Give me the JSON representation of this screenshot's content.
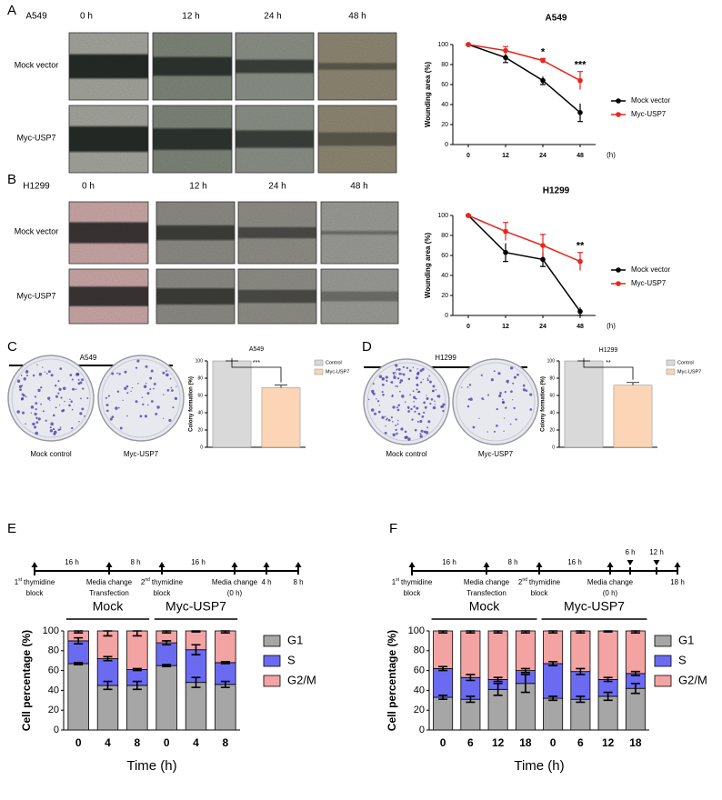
{
  "panels": [
    {
      "label": "A",
      "cell_line": "A549",
      "time_headers": [
        "0 h",
        "12 h",
        "24 h",
        "48 h"
      ],
      "row_labels": [
        "Mock vector",
        "Myc-USP7"
      ]
    },
    {
      "label": "B",
      "cell_line": "H1299",
      "time_headers": [
        "0 h",
        "12 h",
        "24 h",
        "48 h"
      ],
      "row_labels": [
        "Mock vector",
        "Myc-USP7"
      ]
    },
    {
      "label": "C",
      "cell_line": "A549",
      "plate_labels": [
        "Mock control",
        "Myc-USP7"
      ]
    },
    {
      "label": "D",
      "cell_line": "H1299",
      "plate_labels": [
        "Mock control",
        "Myc-USP7"
      ]
    },
    {
      "label": "E",
      "timeline": {
        "intervals": [
          "16 h",
          "8 h",
          "16 h"
        ],
        "events": [
          {
            "ordinal": "1",
            "suffix": "st",
            "text": "thymidine",
            "line2": "block"
          },
          {
            "text": "Media change",
            "line2": "Transfection"
          },
          {
            "ordinal": "2",
            "suffix": "nd",
            "text": "thymidine",
            "line2": "block"
          },
          {
            "text": "Media change",
            "line2": "(0 h)"
          },
          {
            "text": "4 h"
          },
          {
            "text": "8 h"
          }
        ]
      }
    },
    {
      "label": "F",
      "timeline": {
        "intervals": [
          "16 h",
          "8 h",
          "16 h"
        ],
        "events": [
          {
            "ordinal": "1",
            "suffix": "st",
            "text": "thymidine",
            "line2": "block"
          },
          {
            "text": "Media change",
            "line2": "Transfection"
          },
          {
            "ordinal": "2",
            "suffix": "nd",
            "text": "thymidine",
            "line2": "block"
          },
          {
            "text": "Media change",
            "line2": "(0 h)"
          },
          {
            "text": "6 h"
          },
          {
            "text": "12 h"
          },
          {
            "text": "18 h"
          }
        ]
      }
    }
  ],
  "chart_data": [
    {
      "type": "line",
      "title": "A549",
      "x_label": "(h)",
      "y_label": "Wounding area (%)",
      "categories": [
        "0",
        "12",
        "24",
        "48"
      ],
      "ylim": [
        0,
        100
      ],
      "yticks": [
        0,
        20,
        40,
        60,
        80,
        100
      ],
      "series": [
        {
          "name": "Mock vector",
          "color": "#000000",
          "values": [
            100,
            87,
            64,
            32
          ],
          "errors": [
            0,
            5,
            4,
            9
          ]
        },
        {
          "name": "Myc-USP7",
          "color": "#e8261e",
          "values": [
            100,
            94,
            84,
            64
          ],
          "errors": [
            0,
            4,
            2,
            9
          ]
        }
      ],
      "significance": [
        null,
        null,
        "*",
        "***"
      ]
    },
    {
      "type": "line",
      "title": "H1299",
      "x_label": "(h)",
      "y_label": "Wounding area (%)",
      "categories": [
        "0",
        "12",
        "24",
        "48"
      ],
      "ylim": [
        0,
        100
      ],
      "yticks": [
        0,
        20,
        40,
        60,
        80,
        100
      ],
      "series": [
        {
          "name": "Mock vector",
          "color": "#000000",
          "values": [
            100,
            63,
            56,
            4
          ],
          "errors": [
            0,
            9,
            7,
            4
          ]
        },
        {
          "name": "Myc-USP7",
          "color": "#e8261e",
          "values": [
            100,
            84,
            70,
            54
          ],
          "errors": [
            0,
            9,
            11,
            9
          ]
        }
      ],
      "significance": [
        null,
        null,
        null,
        "**"
      ]
    },
    {
      "type": "bar",
      "title": "A549",
      "y_label": "Colony formation (%)",
      "categories": [
        "Control",
        "Myc-USP7"
      ],
      "values": [
        100,
        69
      ],
      "errors": [
        0,
        3
      ],
      "colors": [
        "#d9d9d9",
        "#fbd5b5"
      ],
      "ylim": [
        0,
        100
      ],
      "yticks": [
        0,
        20,
        40,
        60,
        80,
        100
      ],
      "significance": "***"
    },
    {
      "type": "bar",
      "title": "H1299",
      "y_label": "Colony formation (%)",
      "categories": [
        "Control",
        "Myc-USP7"
      ],
      "values": [
        100,
        72
      ],
      "errors": [
        0,
        3
      ],
      "colors": [
        "#d9d9d9",
        "#fbd5b5"
      ],
      "ylim": [
        0,
        100
      ],
      "yticks": [
        0,
        20,
        40,
        60,
        80,
        100
      ],
      "significance": "**"
    },
    {
      "type": "stacked_bar",
      "x_label": "Time (h)",
      "y_label": "Cell percentage (%)",
      "groups": [
        "Mock",
        "Myc-USP7"
      ],
      "categories": [
        "0",
        "4",
        "8",
        "0",
        "4",
        "8"
      ],
      "ylim": [
        0,
        100
      ],
      "yticks": [
        0,
        20,
        40,
        60,
        80,
        100
      ],
      "series": [
        {
          "name": "G1",
          "color": "#a6a6a6",
          "values": [
            67,
            45,
            45,
            65,
            48,
            46
          ],
          "errors": [
            1,
            4,
            4,
            1,
            5,
            3
          ]
        },
        {
          "name": "S",
          "color": "#6b6bf2",
          "values": [
            23,
            27,
            16,
            23,
            33,
            22
          ],
          "errors": [
            3,
            2,
            1,
            2,
            5,
            1
          ]
        },
        {
          "name": "G2/M",
          "color": "#f4a3a3",
          "values": [
            10,
            28,
            39,
            12,
            19,
            32
          ],
          "errors": [
            2,
            5,
            5,
            2,
            1,
            2
          ]
        }
      ]
    },
    {
      "type": "stacked_bar",
      "x_label": "Time (h)",
      "y_label": "Cell percentage (%)",
      "groups": [
        "Mock",
        "Myc-USP7"
      ],
      "categories": [
        "0",
        "6",
        "12",
        "18",
        "0",
        "6",
        "12",
        "18"
      ],
      "ylim": [
        0,
        100
      ],
      "yticks": [
        0,
        20,
        40,
        60,
        80,
        100
      ],
      "series": [
        {
          "name": "G1",
          "color": "#a6a6a6",
          "values": [
            33,
            31,
            41,
            47,
            32,
            31,
            34,
            42
          ],
          "errors": [
            2,
            3,
            6,
            9,
            2,
            3,
            4,
            5
          ]
        },
        {
          "name": "S",
          "color": "#6b6bf2",
          "values": [
            29,
            22,
            10,
            13,
            35,
            28,
            17,
            15
          ],
          "errors": [
            2,
            3,
            2,
            2,
            2,
            3,
            2,
            2
          ]
        },
        {
          "name": "G2/M",
          "color": "#f4a3a3",
          "values": [
            38,
            47,
            49,
            40,
            33,
            41,
            49,
            43
          ],
          "errors": [
            2,
            2,
            2,
            2,
            2,
            2,
            1,
            2
          ]
        }
      ]
    }
  ]
}
